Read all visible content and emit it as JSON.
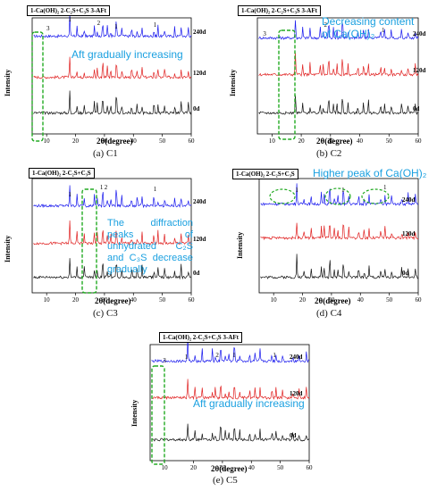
{
  "legend_texts": {
    "C1": "1-Ca(OH)₂  2-C₂S+C₃S  3-AFt",
    "C2": "1-Ca(OH)₂  2-C₂S+C₃S  3-AFt",
    "C3": "1-Ca(OH)₂  2-C₂S+C₃S",
    "C4": "1-Ca(OH)₂  2-C₂S+C₃S",
    "C5": "1-Ca(OH)₂  2-C₂S+C₃S  3-AFt"
  },
  "captions": {
    "C1": "(a) C1",
    "C2": "(b) C2",
    "C3": "(c) C3",
    "C4": "(d) C4",
    "C5": "(e) C5"
  },
  "annotations": {
    "C1": "Aft gradually increasing",
    "C2_line1": "Decreasing content",
    "C2_line2": "of Ca(OH)₂",
    "C3": "The diffraction peaks of unhydrated C₂S and C₃S decrease gradually",
    "C4": "Higher peak of Ca(OH)₂",
    "C5": "Aft gradually increasing"
  },
  "peak_markers": {
    "C1": [
      "3",
      "1",
      "2",
      "1",
      "1"
    ],
    "C2": [
      "3",
      "2",
      "1"
    ],
    "C3": [
      "1",
      "1",
      "2",
      "1"
    ],
    "C4": [
      "1",
      "1",
      "1"
    ],
    "C5": [
      "3",
      "1",
      "2",
      "1",
      "1"
    ]
  },
  "colors": {
    "d240": "#1a1aee",
    "d120": "#e02020",
    "d0": "#111111",
    "annotation": "#1aa0e0",
    "highlight_green": "#22aa22"
  },
  "chart_data": [
    {
      "id": "C1",
      "type": "line",
      "xlabel": "2θ(degree)",
      "ylabel": "Intensity",
      "xlim": [
        5,
        60
      ],
      "xticks": [
        10,
        20,
        30,
        40,
        50,
        60
      ],
      "series": [
        {
          "name": "240d",
          "color": "#1a1aee"
        },
        {
          "name": "120d",
          "color": "#e02020"
        },
        {
          "name": "0d",
          "color": "#111111"
        }
      ]
    },
    {
      "id": "C2",
      "type": "line",
      "xlabel": "2θ(degree)",
      "ylabel": "Intensity",
      "xlim": [
        5,
        60
      ],
      "xticks": [
        10,
        20,
        30,
        40,
        50,
        60
      ],
      "series": [
        {
          "name": "240d",
          "color": "#1a1aee"
        },
        {
          "name": "120d",
          "color": "#e02020"
        },
        {
          "name": "0d",
          "color": "#111111"
        }
      ]
    },
    {
      "id": "C3",
      "type": "line",
      "xlabel": "2θ(degree)",
      "ylabel": "Intensity",
      "xlim": [
        5,
        60
      ],
      "xticks": [
        10,
        20,
        30,
        40,
        50,
        60
      ],
      "series": [
        {
          "name": "240d",
          "color": "#1a1aee"
        },
        {
          "name": "120d",
          "color": "#e02020"
        },
        {
          "name": "0d",
          "color": "#111111"
        }
      ]
    },
    {
      "id": "C4",
      "type": "line",
      "xlabel": "2θ(degree)",
      "ylabel": "Intensity",
      "xlim": [
        5,
        60
      ],
      "xticks": [
        10,
        20,
        30,
        40,
        50,
        60
      ],
      "series": [
        {
          "name": "240d",
          "color": "#1a1aee"
        },
        {
          "name": "120d",
          "color": "#e02020"
        },
        {
          "name": "0d",
          "color": "#111111"
        }
      ]
    },
    {
      "id": "C5",
      "type": "line",
      "xlabel": "2θ(degree)",
      "ylabel": "Intensity",
      "xlim": [
        5,
        60
      ],
      "xticks": [
        10,
        20,
        30,
        40,
        50,
        60
      ],
      "series": [
        {
          "name": "240d",
          "color": "#1a1aee"
        },
        {
          "name": "120d",
          "color": "#e02020"
        },
        {
          "name": "0d",
          "color": "#111111"
        }
      ]
    }
  ]
}
